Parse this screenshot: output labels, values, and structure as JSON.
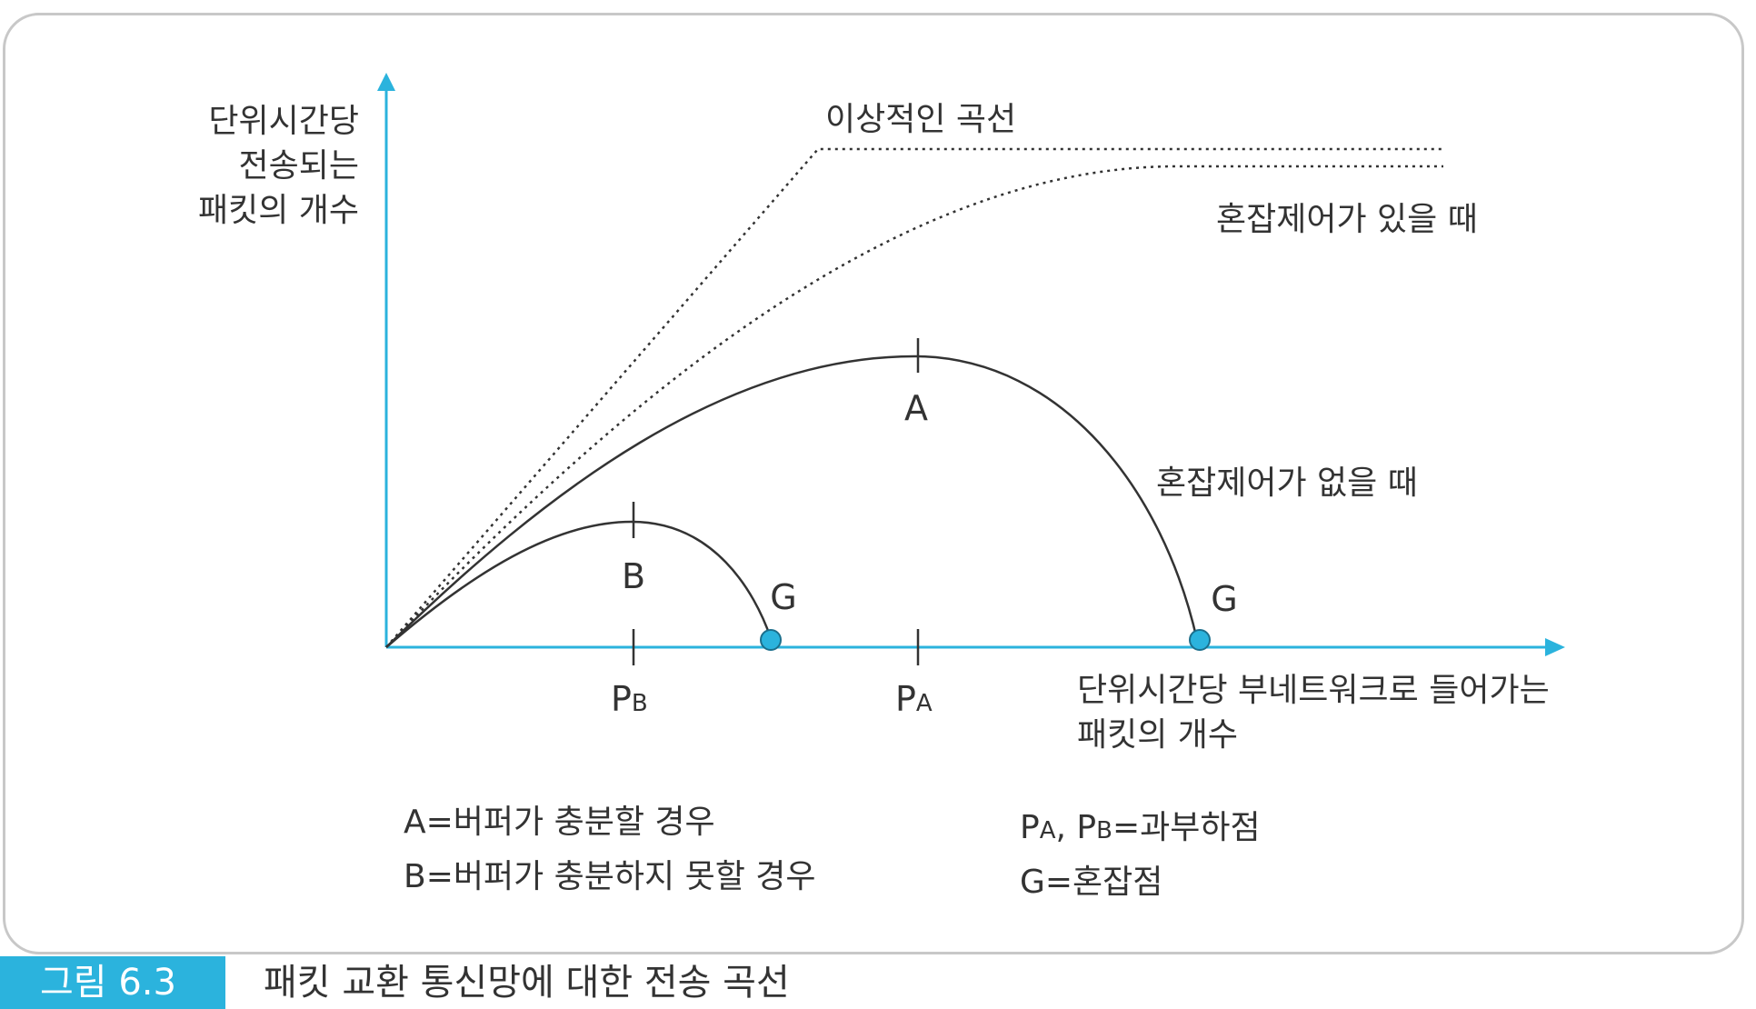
{
  "axes": {
    "y_label": [
      "단위시간당",
      "전송되는",
      "패킷의 개수"
    ],
    "x_label": [
      "단위시간당 부네트워크로 들어가는",
      "패킷의 개수"
    ]
  },
  "curves": {
    "ideal": "이상적인 곡선",
    "with_control": "혼잡제어가 있을 때",
    "without_control": "혼잡제어가 없을 때"
  },
  "points": {
    "a": "A",
    "b": "B",
    "g1": "G",
    "g2": "G"
  },
  "x_ticks": {
    "pb": {
      "main": "P",
      "sub": "B"
    },
    "pa": {
      "main": "P",
      "sub": "A"
    }
  },
  "legend": {
    "a_def": "A=버퍼가 충분할 경우",
    "b_def": "B=버퍼가 충분하지 못할 경우",
    "p_def": {
      "p1": "P",
      "s1": "A",
      "sep": ", ",
      "p2": "P",
      "s2": "B",
      "rest": "=과부하점"
    },
    "g_def": "G=혼잡점"
  },
  "caption": {
    "tab": "그림 6.3",
    "title": "패킷 교환 통신망에 대한 전송 곡선"
  },
  "colors": {
    "axis": "#2bb3dd",
    "curve": "#333333",
    "marker": "#2bb3dd",
    "caption_tab": "#2bb3dd"
  }
}
